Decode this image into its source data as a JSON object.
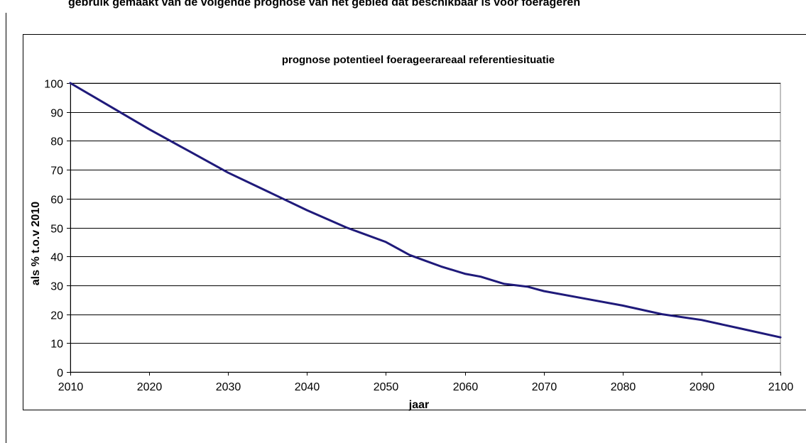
{
  "page": {
    "header_text": "gebruik gemaakt van de volgende prognose van het gebied dat beschikbaar is voor foerageren"
  },
  "colors": {
    "line": "#1f1a7a",
    "grid": "#000000",
    "axis": "#000000",
    "frame": "#000000",
    "background": "#ffffff"
  },
  "chart_data": {
    "type": "line",
    "title": "prognose potentieel foerageerareaal  referentiesituatie",
    "xlabel": "jaar",
    "ylabel": "als % t.o.v 2010",
    "xlim": [
      2010,
      2100
    ],
    "ylim": [
      0,
      100
    ],
    "x_ticks": [
      2010,
      2020,
      2030,
      2040,
      2050,
      2060,
      2070,
      2080,
      2090,
      2100
    ],
    "y_ticks": [
      0,
      10,
      20,
      30,
      40,
      50,
      60,
      70,
      80,
      90,
      100
    ],
    "grid": "horizontal",
    "legend": "none",
    "series": [
      {
        "x": [
          2010,
          2015,
          2020,
          2025,
          2030,
          2035,
          2040,
          2045,
          2050,
          2053,
          2055,
          2057,
          2060,
          2062,
          2065,
          2068,
          2070,
          2075,
          2080,
          2085,
          2090,
          2095,
          2100
        ],
        "values": [
          100,
          92,
          84,
          76.5,
          69,
          62.5,
          56,
          50,
          45,
          40.5,
          38.5,
          36.5,
          34,
          33,
          30.5,
          29.5,
          28,
          25.5,
          23,
          20,
          18,
          15,
          12
        ]
      }
    ]
  }
}
